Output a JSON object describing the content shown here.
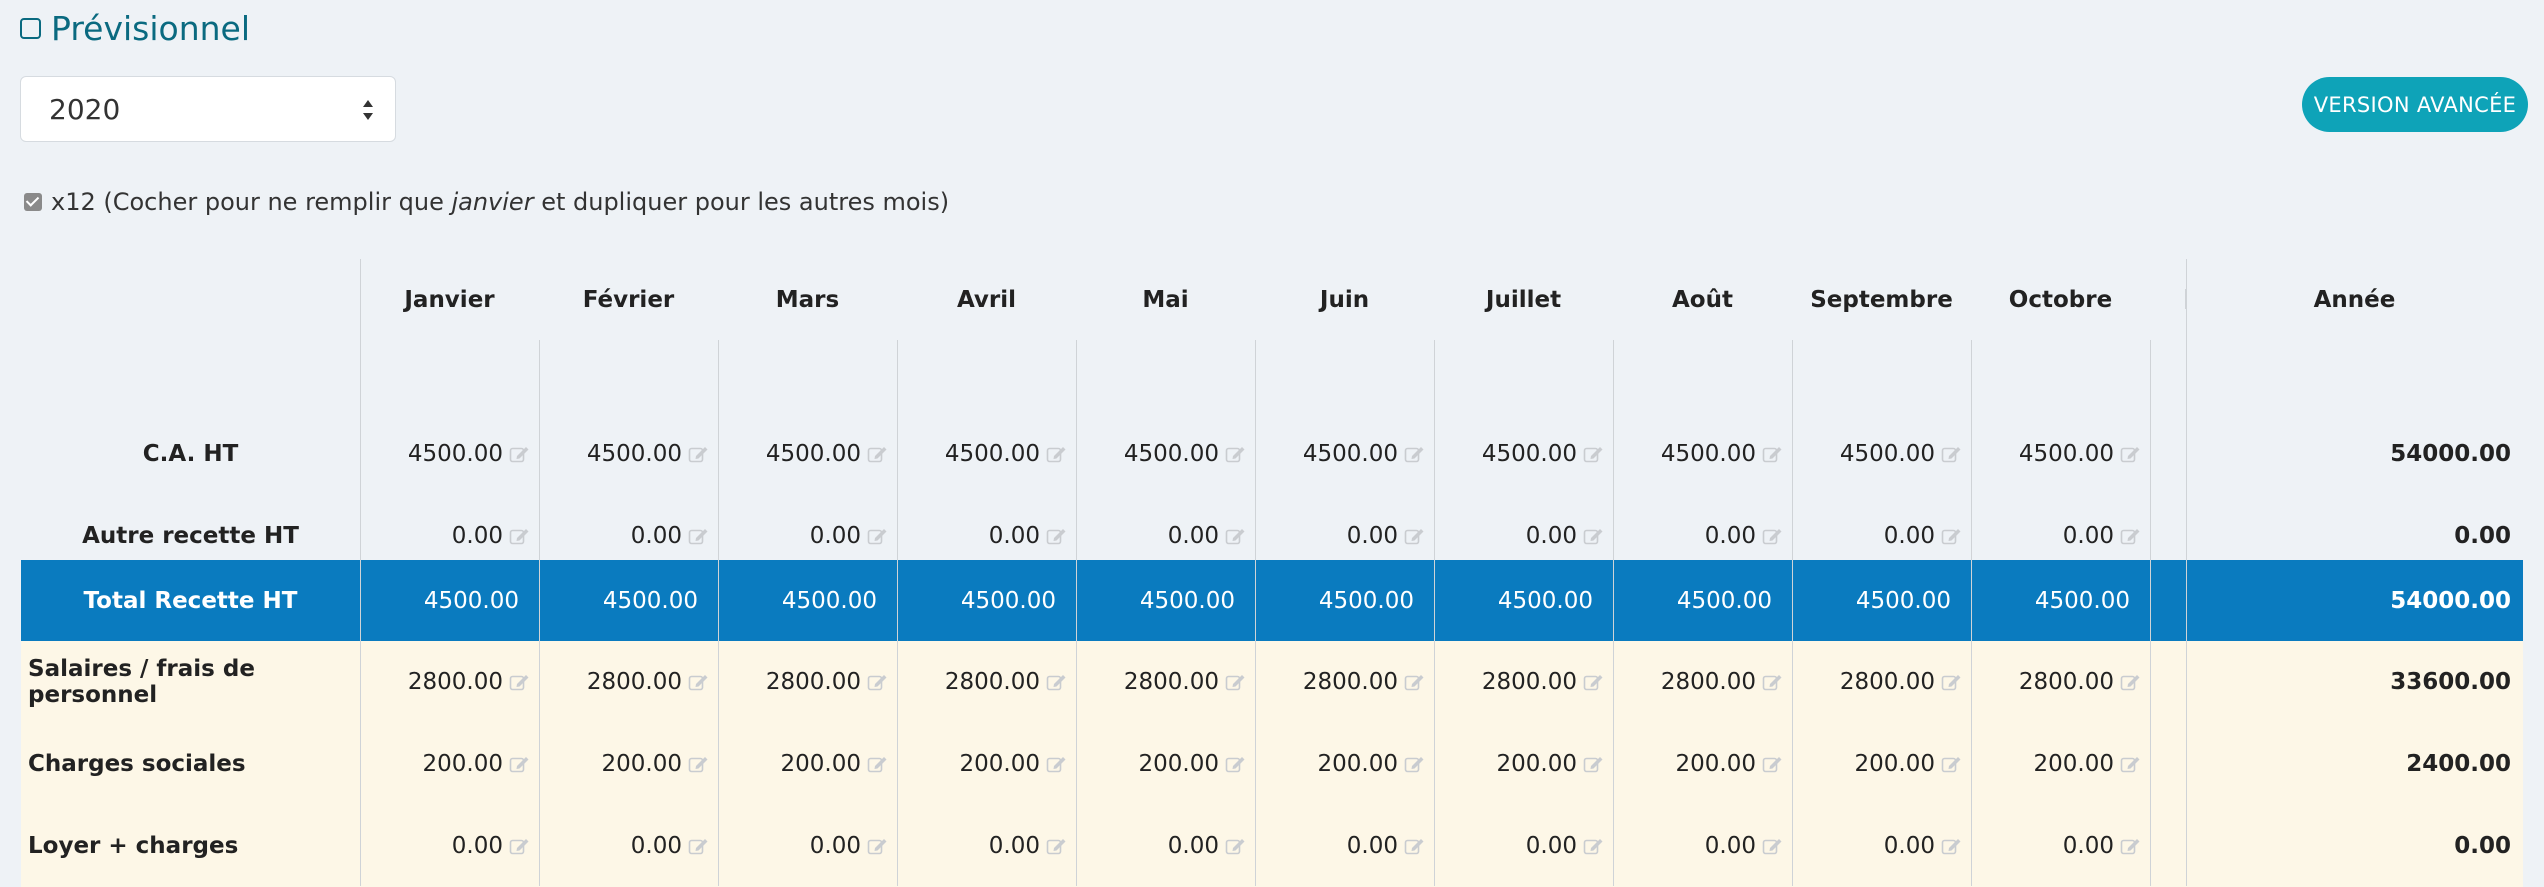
{
  "page": {
    "title": "Prévisionnel"
  },
  "year_select": {
    "value": "2020"
  },
  "advanced_button": {
    "label": "VERSION AVANCÉE"
  },
  "x12": {
    "prefix": "x12 (Cocher pour ne remplir que ",
    "emph": "janvier",
    "suffix": " et dupliquer pour les autres mois)",
    "checked": true
  },
  "table": {
    "months": [
      "Janvier",
      "Février",
      "Mars",
      "Avril",
      "Mai",
      "Juin",
      "Juillet",
      "Août",
      "Septembre",
      "Octobre"
    ],
    "total_header": "Année",
    "rows": [
      {
        "label": "C.A. HT",
        "values": [
          "4500.00",
          "4500.00",
          "4500.00",
          "4500.00",
          "4500.00",
          "4500.00",
          "4500.00",
          "4500.00",
          "4500.00",
          "4500.00"
        ],
        "total": "54000.00",
        "style": "light",
        "editable": true,
        "align": "center"
      },
      {
        "label": "Autre recette HT",
        "values": [
          "0.00",
          "0.00",
          "0.00",
          "0.00",
          "0.00",
          "0.00",
          "0.00",
          "0.00",
          "0.00",
          "0.00"
        ],
        "total": "0.00",
        "style": "light",
        "editable": true,
        "align": "center"
      },
      {
        "label": "Total Recette HT",
        "values": [
          "4500.00",
          "4500.00",
          "4500.00",
          "4500.00",
          "4500.00",
          "4500.00",
          "4500.00",
          "4500.00",
          "4500.00",
          "4500.00"
        ],
        "total": "54000.00",
        "style": "blue",
        "editable": false,
        "align": "center"
      },
      {
        "label": "Salaires / frais de personnel",
        "values": [
          "2800.00",
          "2800.00",
          "2800.00",
          "2800.00",
          "2800.00",
          "2800.00",
          "2800.00",
          "2800.00",
          "2800.00",
          "2800.00"
        ],
        "total": "33600.00",
        "style": "cream",
        "editable": true,
        "align": "left"
      },
      {
        "label": "Charges sociales",
        "values": [
          "200.00",
          "200.00",
          "200.00",
          "200.00",
          "200.00",
          "200.00",
          "200.00",
          "200.00",
          "200.00",
          "200.00"
        ],
        "total": "2400.00",
        "style": "cream",
        "editable": true,
        "align": "left"
      },
      {
        "label": "Loyer + charges",
        "values": [
          "0.00",
          "0.00",
          "0.00",
          "0.00",
          "0.00",
          "0.00",
          "0.00",
          "0.00",
          "0.00",
          "0.00"
        ],
        "total": "0.00",
        "style": "cream",
        "editable": true,
        "align": "left"
      }
    ]
  },
  "colors": {
    "accent": "#0ea3b8",
    "title": "#0a6a80",
    "total_row": "#0a7bbf",
    "cream": "#fdf7e7"
  },
  "icons": {
    "edit": "edit-icon",
    "select_arrows": "sort-arrows-icon",
    "checkbox": "checkbox-icon"
  }
}
